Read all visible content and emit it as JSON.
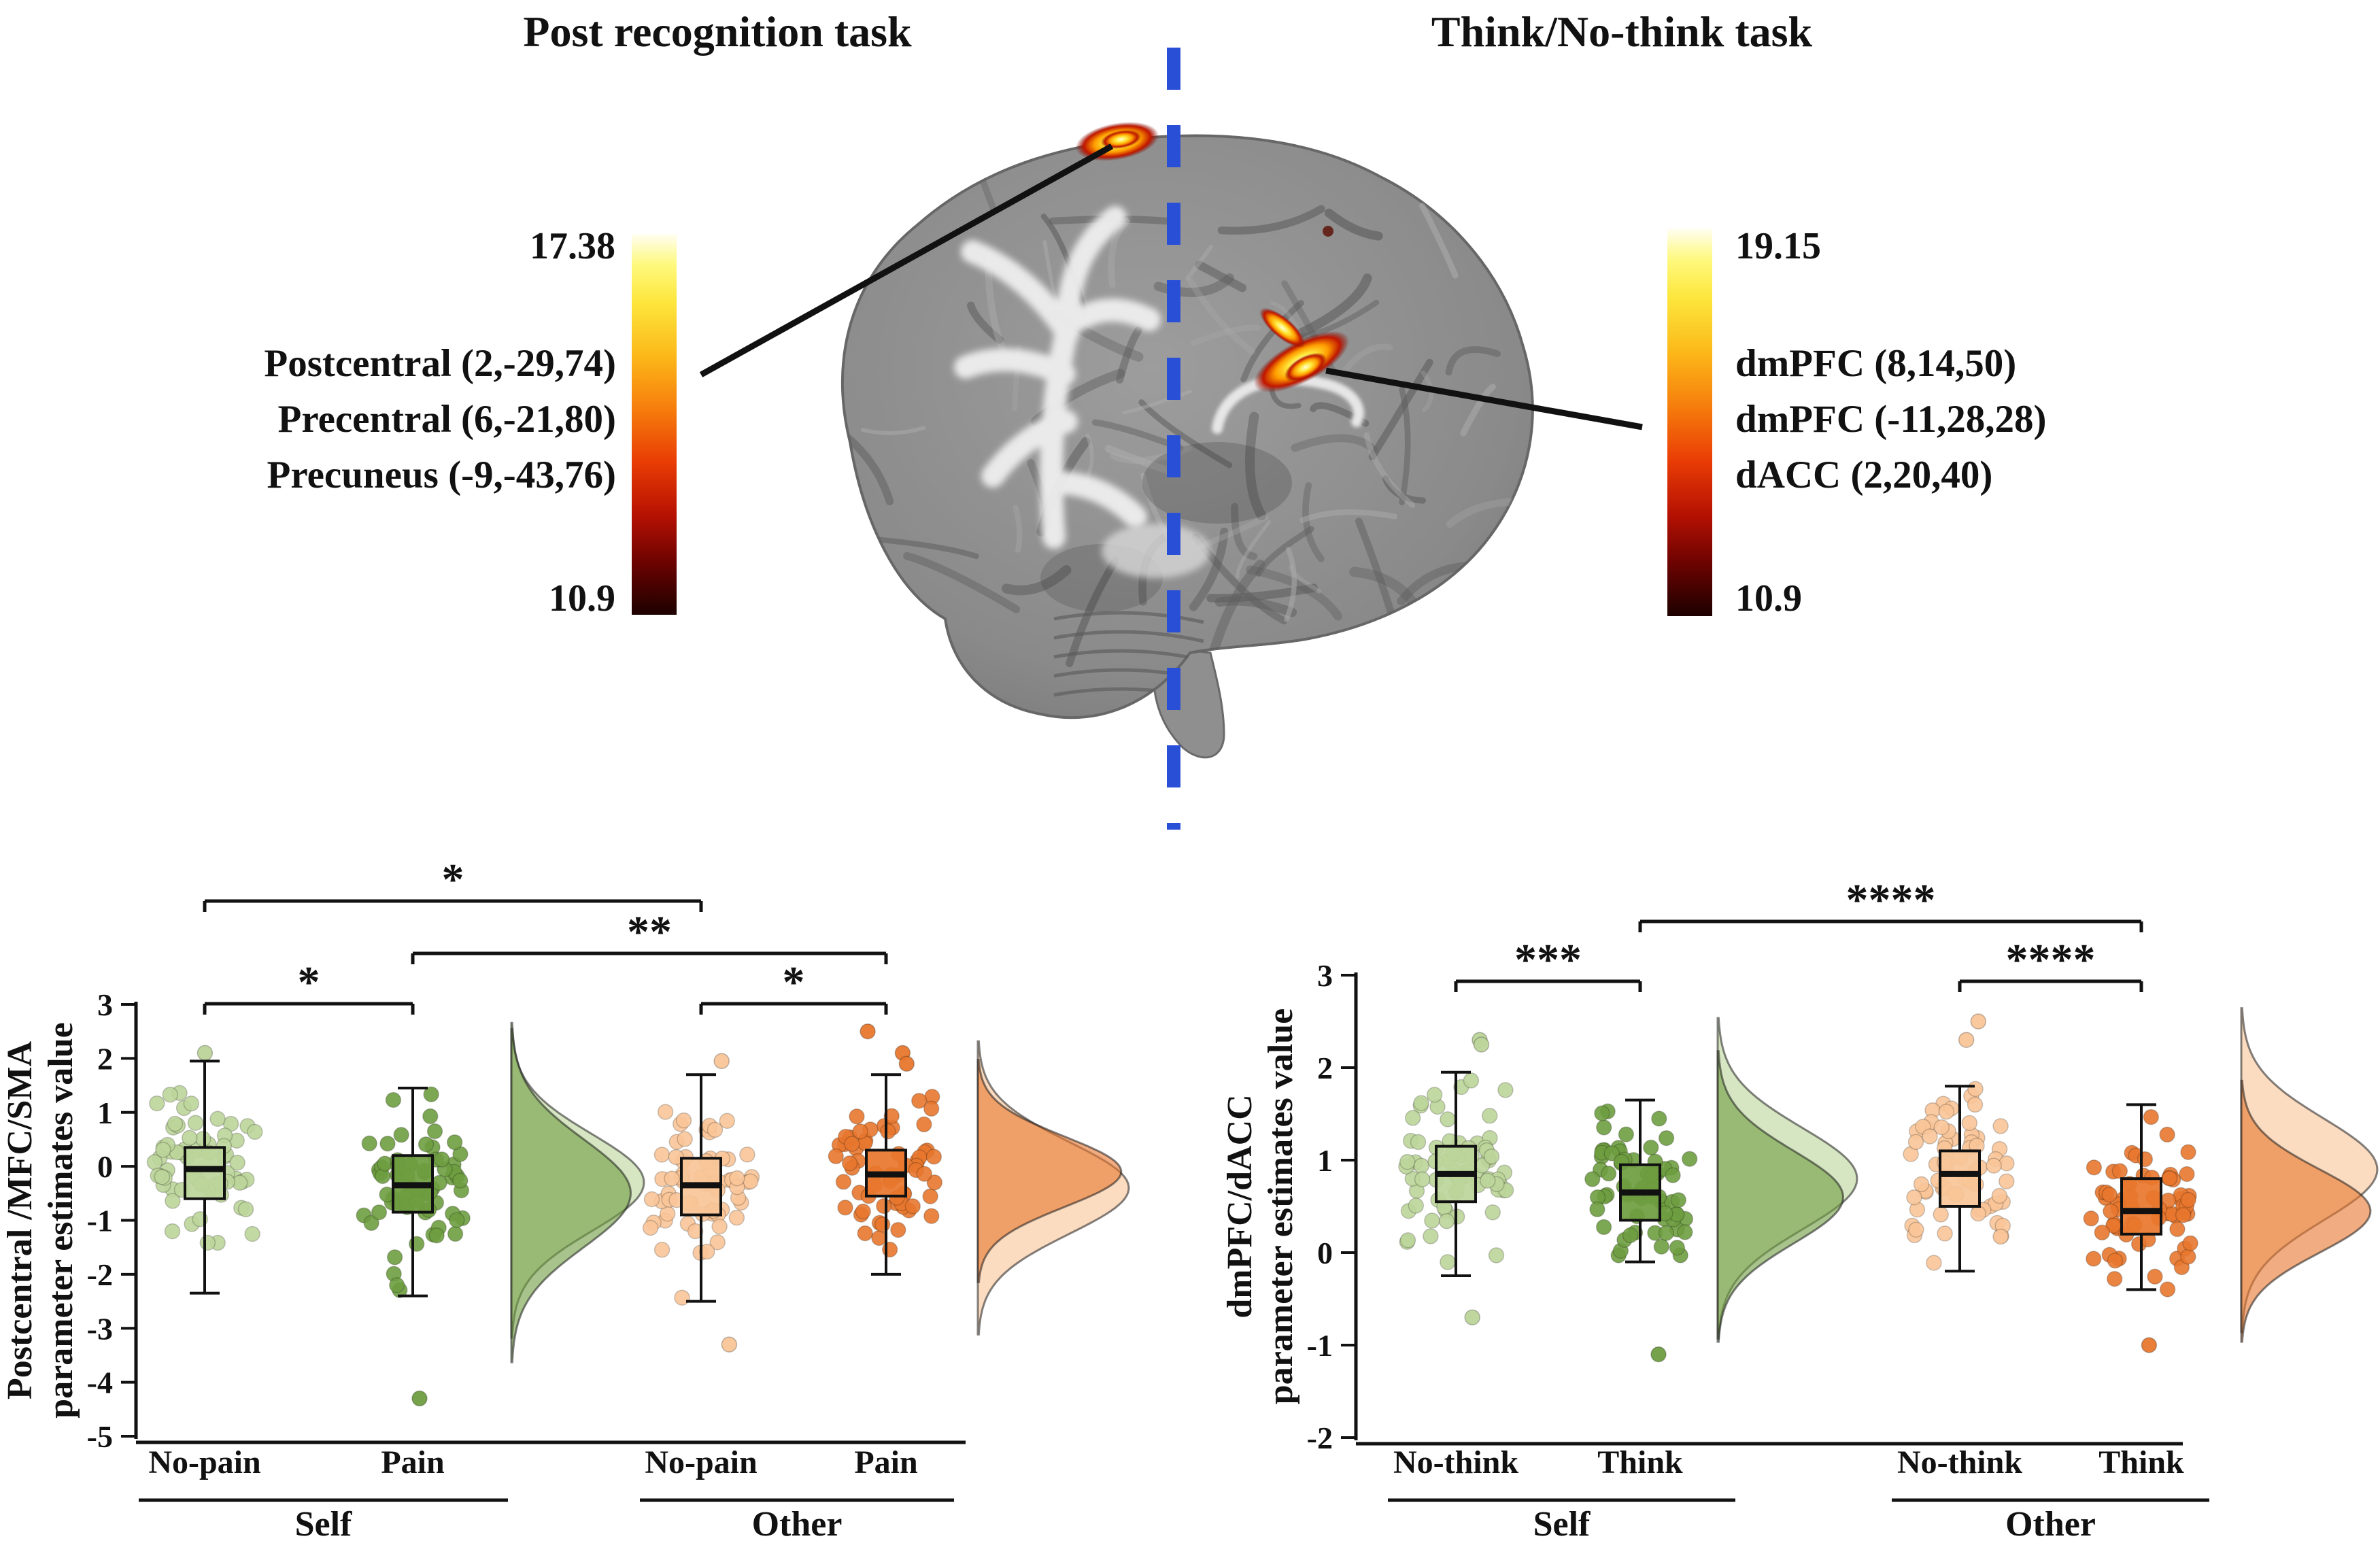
{
  "header": {
    "left_title": "Post recognition task",
    "right_title": "Think/No-think task",
    "left_colorbar": {
      "max": "17.38",
      "min": "10.9"
    },
    "right_colorbar": {
      "max": "19.15",
      "min": "10.9"
    },
    "left_regions": [
      "Postcentral (2,-29,74)",
      "Precentral (6,-21,80)",
      "Precuneus (-9,-43,76)"
    ],
    "right_regions": [
      "dmPFC (8,14,50)",
      "dmPFC (-11,28,28)",
      "dACC (2,20,40)"
    ]
  },
  "colors": {
    "light_green": "#bcd59a",
    "dark_green": "#6e9d40",
    "light_orange": "#f9c598",
    "dark_orange": "#e8772d",
    "divider_blue": "#2a4fd7",
    "hot_core": "#fffde0",
    "hot_mid": "#ff9d00",
    "hot_edge": "#c01500"
  },
  "chart_data": [
    {
      "type": "raincloud_box",
      "ylabel_lines": [
        "Postcentral /MFC/SMA",
        "parameter estimates value"
      ],
      "ylim": [
        -5,
        3
      ],
      "yticks": [
        3,
        2,
        1,
        0,
        -1,
        -2,
        -3,
        -4,
        -5
      ],
      "sections": [
        {
          "label": "Self",
          "groups": [
            0,
            1
          ]
        },
        {
          "label": "Other",
          "groups": [
            2,
            3
          ]
        }
      ],
      "groups": [
        {
          "label": "No-pain",
          "section": "Self",
          "color": "light_green",
          "n": 64,
          "box": {
            "q1": -0.6,
            "median": -0.05,
            "q3": 0.35,
            "whisker_low": -2.35,
            "whisker_high": 1.95
          },
          "outliers": [
            2.1
          ]
        },
        {
          "label": "Pain",
          "section": "Self",
          "color": "dark_green",
          "n": 64,
          "box": {
            "q1": -0.85,
            "median": -0.35,
            "q3": 0.2,
            "whisker_low": -2.4,
            "whisker_high": 1.45
          },
          "outliers": [
            -4.3
          ]
        },
        {
          "label": "No-pain",
          "section": "Other",
          "color": "light_orange",
          "n": 64,
          "box": {
            "q1": -0.9,
            "median": -0.35,
            "q3": 0.15,
            "whisker_low": -2.5,
            "whisker_high": 1.7
          },
          "outliers": [
            1.95,
            -3.3
          ]
        },
        {
          "label": "Pain",
          "section": "Other",
          "color": "dark_orange",
          "n": 64,
          "box": {
            "q1": -0.55,
            "median": -0.15,
            "q3": 0.3,
            "whisker_low": -2.0,
            "whisker_high": 1.7
          },
          "outliers": [
            2.5,
            2.1,
            1.9
          ]
        }
      ],
      "violins": [
        {
          "position": "after_self",
          "curves": [
            {
              "color": "light_green",
              "mean": -0.3,
              "sd": 0.9,
              "amp": 1.0
            },
            {
              "color": "dark_green",
              "mean": -0.5,
              "sd": 1.0,
              "amp": 0.9
            }
          ]
        },
        {
          "position": "right_edge",
          "curves": [
            {
              "color": "light_orange",
              "mean": -0.4,
              "sd": 0.85,
              "amp": 1.0
            },
            {
              "color": "dark_orange",
              "mean": -0.1,
              "sd": 0.65,
              "amp": 0.95
            }
          ]
        }
      ],
      "significance": [
        {
          "from": 0,
          "to": 2,
          "label": "*",
          "row": 0
        },
        {
          "from": 1,
          "to": 3,
          "label": "**",
          "row": 1
        },
        {
          "from": 0,
          "to": 1,
          "label": "*",
          "row": 2
        },
        {
          "from": 2,
          "to": 3,
          "label": "*",
          "row": 2
        }
      ]
    },
    {
      "type": "raincloud_box",
      "ylabel_lines": [
        "dmPFC/dACC",
        "parameter estimates value"
      ],
      "ylim": [
        -2,
        3
      ],
      "yticks": [
        3,
        2,
        1,
        0,
        -1,
        -2
      ],
      "sections": [
        {
          "label": "Self",
          "groups": [
            0,
            1
          ]
        },
        {
          "label": "Other",
          "groups": [
            2,
            3
          ]
        }
      ],
      "groups": [
        {
          "label": "No-think",
          "section": "Self",
          "color": "light_green",
          "n": 68,
          "box": {
            "q1": 0.55,
            "median": 0.85,
            "q3": 1.15,
            "whisker_low": -0.25,
            "whisker_high": 1.95
          },
          "outliers": [
            2.3,
            2.25,
            -0.7
          ]
        },
        {
          "label": "Think",
          "section": "Self",
          "color": "dark_green",
          "n": 68,
          "box": {
            "q1": 0.35,
            "median": 0.65,
            "q3": 0.95,
            "whisker_low": -0.1,
            "whisker_high": 1.65
          },
          "outliers": [
            -1.1
          ]
        },
        {
          "label": "No-think",
          "section": "Other",
          "color": "light_orange",
          "n": 68,
          "box": {
            "q1": 0.5,
            "median": 0.85,
            "q3": 1.1,
            "whisker_low": -0.2,
            "whisker_high": 1.8
          },
          "outliers": [
            2.5,
            2.3
          ]
        },
        {
          "label": "Think",
          "section": "Other",
          "color": "dark_orange",
          "n": 68,
          "box": {
            "q1": 0.2,
            "median": 0.45,
            "q3": 0.8,
            "whisker_low": -0.4,
            "whisker_high": 1.6
          },
          "outliers": [
            -1.0
          ]
        }
      ],
      "violins": [
        {
          "position": "after_self",
          "curves": [
            {
              "color": "light_green",
              "mean": 0.8,
              "sd": 0.55,
              "amp": 1.0
            },
            {
              "color": "dark_green",
              "mean": 0.6,
              "sd": 0.5,
              "amp": 0.9
            }
          ]
        },
        {
          "position": "right_edge",
          "curves": [
            {
              "color": "light_orange",
              "mean": 0.9,
              "sd": 0.55,
              "amp": 1.0
            },
            {
              "color": "dark_orange",
              "mean": 0.45,
              "sd": 0.45,
              "amp": 0.95
            }
          ]
        }
      ],
      "significance": [
        {
          "from": 0,
          "to": 1,
          "label": "***",
          "row": 1
        },
        {
          "from": 1,
          "to": 3,
          "label": "****",
          "row": 0
        },
        {
          "from": 2,
          "to": 3,
          "label": "****",
          "row": 1
        }
      ]
    }
  ]
}
